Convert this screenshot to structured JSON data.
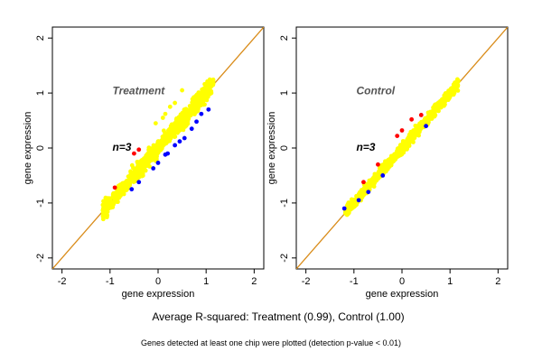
{
  "caption": "Average R-squared: Treatment (0.99), Control (1.00)",
  "footnote": "Genes detected at least one chip were plotted (detection p-value < 0.01)",
  "colors": {
    "background": "#ffffff",
    "points_main": "#ffff00",
    "points_above": "#ff0000",
    "points_below": "#0000ff",
    "diagonal": "#d98c1a",
    "panel_label": "#555555"
  },
  "chart_data": [
    {
      "type": "scatter",
      "panel_label": "Treatment",
      "annotation": "n=3",
      "xlabel": "gene expression",
      "ylabel": "gene expression",
      "xlim": [
        -2.2,
        2.2
      ],
      "ylim": [
        -2.2,
        2.2
      ],
      "xticks": [
        -2,
        -1,
        0,
        1,
        2
      ],
      "yticks": [
        -2,
        -1,
        0,
        1,
        2
      ],
      "reference_line": "y = x",
      "cloud": {
        "x_start": -1.15,
        "x_end": 1.15,
        "half_width": 0.14
      },
      "series": [
        {
          "color": "yellow",
          "points": [
            [
              -1.1,
              -1.08
            ],
            [
              -0.9,
              -0.85
            ],
            [
              -0.6,
              -0.52
            ],
            [
              -0.3,
              -0.2
            ],
            [
              0,
              0.08
            ],
            [
              0.3,
              0.4
            ],
            [
              0.6,
              0.65
            ],
            [
              0.9,
              0.92
            ],
            [
              1.1,
              1.12
            ],
            [
              0.1,
              0.55
            ],
            [
              0.25,
              0.75
            ],
            [
              -0.05,
              0.45
            ],
            [
              0.5,
              1.05
            ],
            [
              0.15,
              0.62
            ],
            [
              0.35,
              0.82
            ]
          ]
        },
        {
          "color": "red",
          "points": [
            [
              -0.5,
              -0.1
            ],
            [
              -0.4,
              -0.03
            ],
            [
              -0.9,
              -0.72
            ]
          ]
        },
        {
          "color": "blue",
          "points": [
            [
              0.35,
              0.05
            ],
            [
              0.45,
              0.12
            ],
            [
              0.55,
              0.18
            ],
            [
              0.7,
              0.35
            ],
            [
              0.8,
              0.48
            ],
            [
              0.9,
              0.62
            ],
            [
              1.05,
              0.7
            ],
            [
              0.2,
              -0.1
            ],
            [
              -0.4,
              -0.62
            ],
            [
              -0.55,
              -0.75
            ],
            [
              -0.1,
              -0.37
            ],
            [
              0,
              -0.27
            ],
            [
              0.15,
              -0.12
            ]
          ]
        }
      ]
    },
    {
      "type": "scatter",
      "panel_label": "Control",
      "annotation": "n=3",
      "xlabel": "gene expression",
      "ylabel": "gene expression",
      "xlim": [
        -2.2,
        2.2
      ],
      "ylim": [
        -2.2,
        2.2
      ],
      "xticks": [
        -2,
        -1,
        0,
        1,
        2
      ],
      "yticks": [
        -2,
        -1,
        0,
        1,
        2
      ],
      "reference_line": "y = x",
      "cloud": {
        "x_start": -1.18,
        "x_end": 1.18,
        "half_width": 0.09
      },
      "series": [
        {
          "color": "yellow",
          "points": [
            [
              -1.15,
              -1.13
            ],
            [
              -0.9,
              -0.88
            ],
            [
              -0.6,
              -0.58
            ],
            [
              -0.3,
              -0.28
            ],
            [
              0,
              0.02
            ],
            [
              0.3,
              0.32
            ],
            [
              0.6,
              0.62
            ],
            [
              0.9,
              0.92
            ],
            [
              1.15,
              1.16
            ]
          ]
        },
        {
          "color": "red",
          "points": [
            [
              0,
              0.32
            ],
            [
              -0.1,
              0.22
            ],
            [
              0.2,
              0.52
            ],
            [
              -0.5,
              -0.3
            ],
            [
              0.4,
              0.6
            ],
            [
              -0.8,
              -0.62
            ]
          ]
        },
        {
          "color": "blue",
          "points": [
            [
              -1.2,
              -1.1
            ],
            [
              -0.9,
              -0.95
            ],
            [
              -0.7,
              -0.8
            ],
            [
              -0.4,
              -0.5
            ],
            [
              0.5,
              0.4
            ]
          ]
        }
      ]
    }
  ]
}
